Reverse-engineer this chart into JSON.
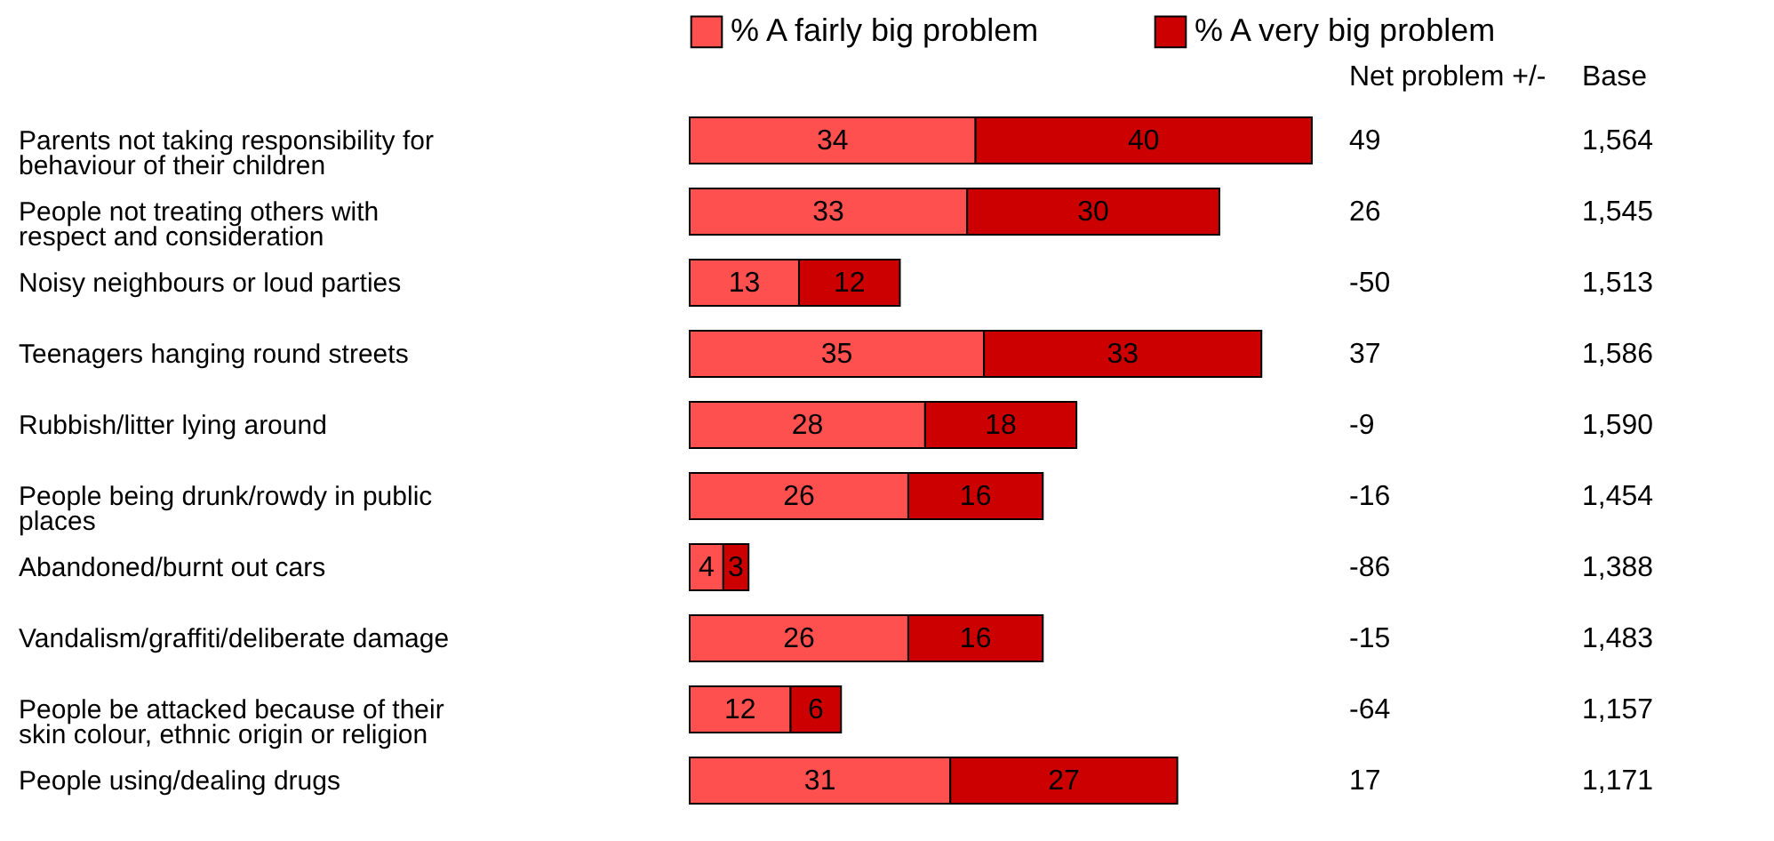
{
  "chart_data": [
    {
      "type": "bar",
      "orientation": "horizontal",
      "stacked": true,
      "data_labels": true,
      "legend": "top",
      "categories": [
        "Parents not taking responsibility for behaviour of their children",
        "People not treating others with respect and consideration",
        "Noisy neighbours or loud parties",
        "Teenagers hanging round streets",
        "Rubbish/litter lying around",
        "People being drunk/rowdy in public places",
        "Abandoned/burnt out cars",
        "Vandalism/graffiti/deliberate damage",
        "People be attacked because of their skin colour, ethnic origin or religion",
        "People using/dealing drugs"
      ],
      "series": [
        {
          "name": "% A fairly big problem",
          "color": "#ff5050",
          "values": [
            34,
            33,
            13,
            35,
            28,
            26,
            4,
            26,
            12,
            31
          ]
        },
        {
          "name": "% A very big problem",
          "color": "#cc0000",
          "values": [
            40,
            30,
            12,
            33,
            18,
            16,
            3,
            16,
            6,
            27
          ]
        }
      ]
    },
    {
      "type": "other",
      "title": "Net problem +/-",
      "annotations": [
        "49",
        "26",
        "-50",
        "37",
        "-9",
        "-16",
        "-86",
        "-15",
        "-64",
        "17"
      ]
    },
    {
      "type": "other",
      "title": "Base",
      "annotations": [
        "1,564",
        "1,545",
        "1,513",
        "1,586",
        "1,590",
        "1,454",
        "1,388",
        "1,483",
        "1,157",
        "1,171"
      ]
    }
  ]
}
